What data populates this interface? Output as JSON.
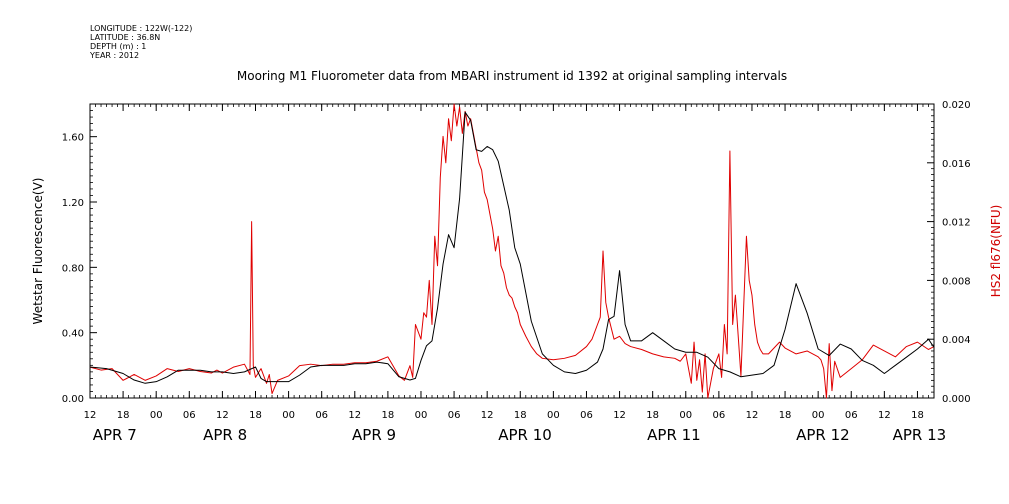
{
  "header": {
    "longitude": "LONGITUDE : 122W(-122)",
    "latitude": "LATITUDE : 36.8N",
    "depth": "DEPTH (m) : 1",
    "year": "YEAR : 2012"
  },
  "chart_data": {
    "type": "line",
    "title": "Mooring M1 Fluorometer data from MBARI instrument id 1392 at original sampling intervals",
    "ylabel": "Wetstar Fluorescence(V)",
    "y2label": "HS2 fl676(NFU)",
    "ylim": [
      0,
      1.8
    ],
    "y2lim": [
      0,
      0.02
    ],
    "xlim_hours": [
      0,
      153
    ],
    "yticks": [
      "0.00",
      "0.40",
      "0.80",
      "1.20",
      "1.60"
    ],
    "y2ticks": [
      "0.000",
      "0.004",
      "0.008",
      "0.012",
      "0.016",
      "0.020"
    ],
    "xticks": [
      {
        "h": 0,
        "label": "12"
      },
      {
        "h": 6,
        "label": "18"
      },
      {
        "h": 12,
        "label": "00"
      },
      {
        "h": 18,
        "label": "06"
      },
      {
        "h": 24,
        "label": "12"
      },
      {
        "h": 30,
        "label": "18"
      },
      {
        "h": 36,
        "label": "00"
      },
      {
        "h": 42,
        "label": "06"
      },
      {
        "h": 48,
        "label": "12"
      },
      {
        "h": 54,
        "label": "18"
      },
      {
        "h": 60,
        "label": "00"
      },
      {
        "h": 66,
        "label": "06"
      },
      {
        "h": 72,
        "label": "12"
      },
      {
        "h": 78,
        "label": "18"
      },
      {
        "h": 84,
        "label": "00"
      },
      {
        "h": 90,
        "label": "06"
      },
      {
        "h": 96,
        "label": "12"
      },
      {
        "h": 102,
        "label": "18"
      },
      {
        "h": 108,
        "label": "00"
      },
      {
        "h": 114,
        "label": "06"
      },
      {
        "h": 120,
        "label": "12"
      },
      {
        "h": 126,
        "label": "18"
      },
      {
        "h": 132,
        "label": "00"
      },
      {
        "h": 138,
        "label": "06"
      },
      {
        "h": 144,
        "label": "12"
      },
      {
        "h": 150,
        "label": "18"
      }
    ],
    "day_labels": [
      {
        "h": 0.5,
        "label": "APR  7"
      },
      {
        "h": 20.5,
        "label": "APR  8"
      },
      {
        "h": 47.5,
        "label": "APR  9"
      },
      {
        "h": 74,
        "label": "APR 10"
      },
      {
        "h": 101,
        "label": "APR 11"
      },
      {
        "h": 128,
        "label": "APR 12"
      },
      {
        "h": 145.5,
        "label": "APR 13"
      }
    ],
    "colors": {
      "wetstar": "#000000",
      "hs2": "#e00000",
      "y2label": "#d00000"
    },
    "series": [
      {
        "axis": "left",
        "x": [
          0,
          3,
          6,
          8,
          10,
          12,
          14,
          16,
          18,
          20,
          22,
          24,
          26,
          28,
          30,
          31,
          32,
          34,
          36,
          38,
          40,
          42,
          44,
          46,
          48,
          50,
          52,
          54,
          56,
          58,
          59,
          60,
          61,
          62,
          63,
          64,
          65,
          66,
          67,
          68,
          69,
          70,
          71,
          72,
          73,
          74,
          75,
          76,
          77,
          78,
          80,
          82,
          84,
          86,
          88,
          90,
          92,
          93,
          94,
          95,
          96,
          97,
          98,
          100,
          102,
          104,
          106,
          108,
          110,
          112,
          114,
          116,
          118,
          120,
          122,
          124,
          126,
          128,
          130,
          132,
          134,
          136,
          138,
          140,
          142,
          144,
          146,
          148,
          150,
          152,
          153
        ],
        "y": [
          0.19,
          0.18,
          0.15,
          0.11,
          0.09,
          0.1,
          0.13,
          0.17,
          0.17,
          0.17,
          0.16,
          0.16,
          0.15,
          0.16,
          0.19,
          0.12,
          0.1,
          0.1,
          0.1,
          0.14,
          0.19,
          0.2,
          0.2,
          0.2,
          0.21,
          0.21,
          0.22,
          0.21,
          0.13,
          0.11,
          0.12,
          0.23,
          0.32,
          0.35,
          0.55,
          0.82,
          1.0,
          0.92,
          1.22,
          1.75,
          1.7,
          1.52,
          1.51,
          1.54,
          1.52,
          1.45,
          1.3,
          1.15,
          0.92,
          0.82,
          0.47,
          0.27,
          0.2,
          0.16,
          0.15,
          0.17,
          0.22,
          0.3,
          0.48,
          0.5,
          0.78,
          0.45,
          0.35,
          0.35,
          0.4,
          0.35,
          0.3,
          0.28,
          0.28,
          0.25,
          0.18,
          0.16,
          0.13,
          0.14,
          0.15,
          0.2,
          0.42,
          0.7,
          0.52,
          0.3,
          0.26,
          0.33,
          0.3,
          0.23,
          0.2,
          0.15,
          0.2,
          0.25,
          0.3,
          0.36,
          0.31
        ]
      },
      {
        "axis": "right",
        "x": [
          0,
          2,
          4,
          6,
          8,
          10,
          12,
          14,
          16,
          18,
          20,
          22,
          23,
          24,
          26,
          28,
          29,
          29.3,
          29.6,
          30,
          31,
          32,
          32.5,
          33,
          34,
          36,
          38,
          40,
          42,
          44,
          46,
          48,
          50,
          52,
          54,
          56,
          57,
          58,
          58.5,
          59,
          60,
          60.5,
          61,
          61.5,
          62,
          62.5,
          63,
          63.5,
          64,
          64.5,
          65,
          65.5,
          66,
          66.5,
          67,
          67.5,
          68,
          68.5,
          69,
          69.5,
          70,
          70.5,
          71,
          71.5,
          72,
          72.5,
          73,
          73.5,
          74,
          74.5,
          75,
          75.5,
          76,
          76.5,
          77,
          77.5,
          78,
          79,
          80,
          81,
          82,
          84,
          86,
          88,
          90,
          91,
          92,
          92.5,
          93,
          93.5,
          94,
          95,
          96,
          97,
          98,
          100,
          102,
          104,
          106,
          107,
          108,
          109,
          109.5,
          110,
          110.5,
          111,
          111.5,
          112,
          113,
          114,
          114.5,
          115,
          115.5,
          116,
          116.5,
          117,
          118,
          119,
          119.5,
          120,
          120.5,
          121,
          121.5,
          122,
          123,
          124,
          125,
          126,
          128,
          130,
          132,
          132.5,
          133,
          133.5,
          134,
          134.5,
          135,
          136,
          138,
          140,
          142,
          144,
          146,
          148,
          150,
          152,
          153
        ],
        "y": [
          0.0021,
          0.0019,
          0.002,
          0.0012,
          0.0016,
          0.0012,
          0.0015,
          0.002,
          0.0018,
          0.002,
          0.0018,
          0.0017,
          0.0019,
          0.0017,
          0.0021,
          0.0023,
          0.0016,
          0.012,
          0.0022,
          0.0014,
          0.002,
          0.001,
          0.0016,
          0.0003,
          0.0012,
          0.0015,
          0.0022,
          0.0023,
          0.0022,
          0.0023,
          0.0023,
          0.0024,
          0.0024,
          0.0025,
          0.0028,
          0.0015,
          0.0012,
          0.0022,
          0.0014,
          0.005,
          0.004,
          0.0058,
          0.0055,
          0.008,
          0.005,
          0.011,
          0.009,
          0.015,
          0.0178,
          0.016,
          0.019,
          0.0175,
          0.02,
          0.0185,
          0.0198,
          0.018,
          0.0195,
          0.0185,
          0.019,
          0.018,
          0.017,
          0.016,
          0.0155,
          0.014,
          0.0135,
          0.0125,
          0.0115,
          0.01,
          0.011,
          0.009,
          0.0085,
          0.0075,
          0.007,
          0.0068,
          0.0062,
          0.0058,
          0.005,
          0.0042,
          0.0035,
          0.003,
          0.0027,
          0.0026,
          0.0027,
          0.0029,
          0.0035,
          0.004,
          0.005,
          0.0055,
          0.01,
          0.0065,
          0.0055,
          0.004,
          0.0042,
          0.0037,
          0.0035,
          0.0033,
          0.003,
          0.0028,
          0.0027,
          0.0025,
          0.003,
          0.001,
          0.0038,
          0.0012,
          0.0026,
          0.0004,
          0.003,
          0.0,
          0.002,
          0.003,
          0.0014,
          0.005,
          0.003,
          0.0168,
          0.005,
          0.007,
          0.0015,
          0.011,
          0.008,
          0.007,
          0.005,
          0.0038,
          0.0033,
          0.003,
          0.003,
          0.0034,
          0.0038,
          0.0034,
          0.003,
          0.0032,
          0.0028,
          0.0026,
          0.002,
          0.0,
          0.0037,
          0.0005,
          0.0025,
          0.0014,
          0.002,
          0.0026,
          0.0036,
          0.0032,
          0.0028,
          0.0035,
          0.0038,
          0.0033,
          0.0035
        ]
      }
    ]
  }
}
